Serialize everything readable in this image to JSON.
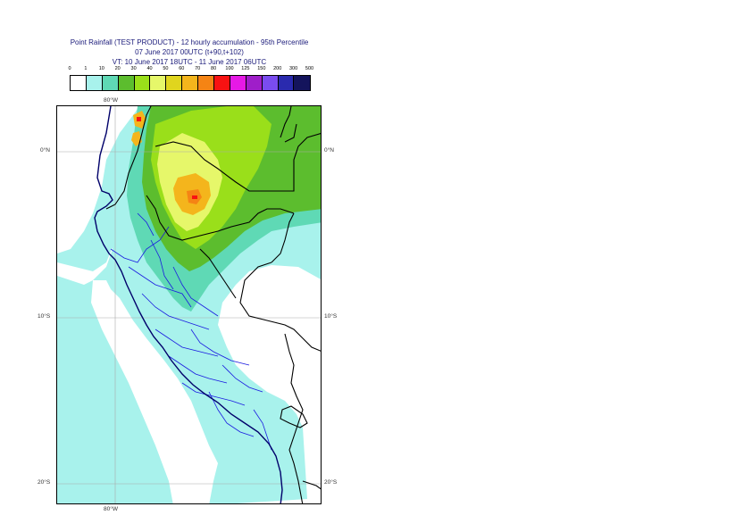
{
  "header": {
    "title_line1": "Point Rainfall (TEST PRODUCT) - 12 hourly accumulation - 95th Percentile",
    "title_line2": "07 June 2017 00UTC (t+90,t+102)",
    "title_line3": "VT: 10 June 2017 18UTC - 11 June 2017 06UTC"
  },
  "legend": {
    "ticks": [
      "0",
      "1",
      "10",
      "20",
      "30",
      "40",
      "50",
      "60",
      "70",
      "80",
      "100",
      "125",
      "150",
      "200",
      "300",
      "500"
    ],
    "colors": [
      "#ffffff",
      "#a8f2ec",
      "#5fd9b5",
      "#5cbd2e",
      "#9adf1a",
      "#e6f76a",
      "#e0d51e",
      "#f4b51c",
      "#f58414",
      "#f81212",
      "#e619e6",
      "#9f1ec9",
      "#7a4cf0",
      "#2a2aae",
      "#14145c"
    ]
  },
  "map": {
    "lon_labels": {
      "top": "80°W",
      "bottom": "80°W"
    },
    "lat_labels": [
      {
        "lat": "0",
        "left": "0°N",
        "right": "0°N"
      },
      {
        "lat": "-10",
        "left": "10°S",
        "right": "10°S"
      },
      {
        "lat": "-20",
        "left": "20°S",
        "right": "20°S"
      }
    ],
    "colors": {
      "ocean_light": "#a8f2ec",
      "teal": "#5fd9b5",
      "green": "#5cbd2e",
      "lightgreen": "#9adf1a",
      "yellow": "#e6f76a",
      "orange": "#f4b51c",
      "darkorange": "#f58414",
      "red": "#f81212",
      "border": "#000000",
      "region_border": "#1a1ae0",
      "coast": "#00006a",
      "grid": "#aaaaaa"
    }
  }
}
